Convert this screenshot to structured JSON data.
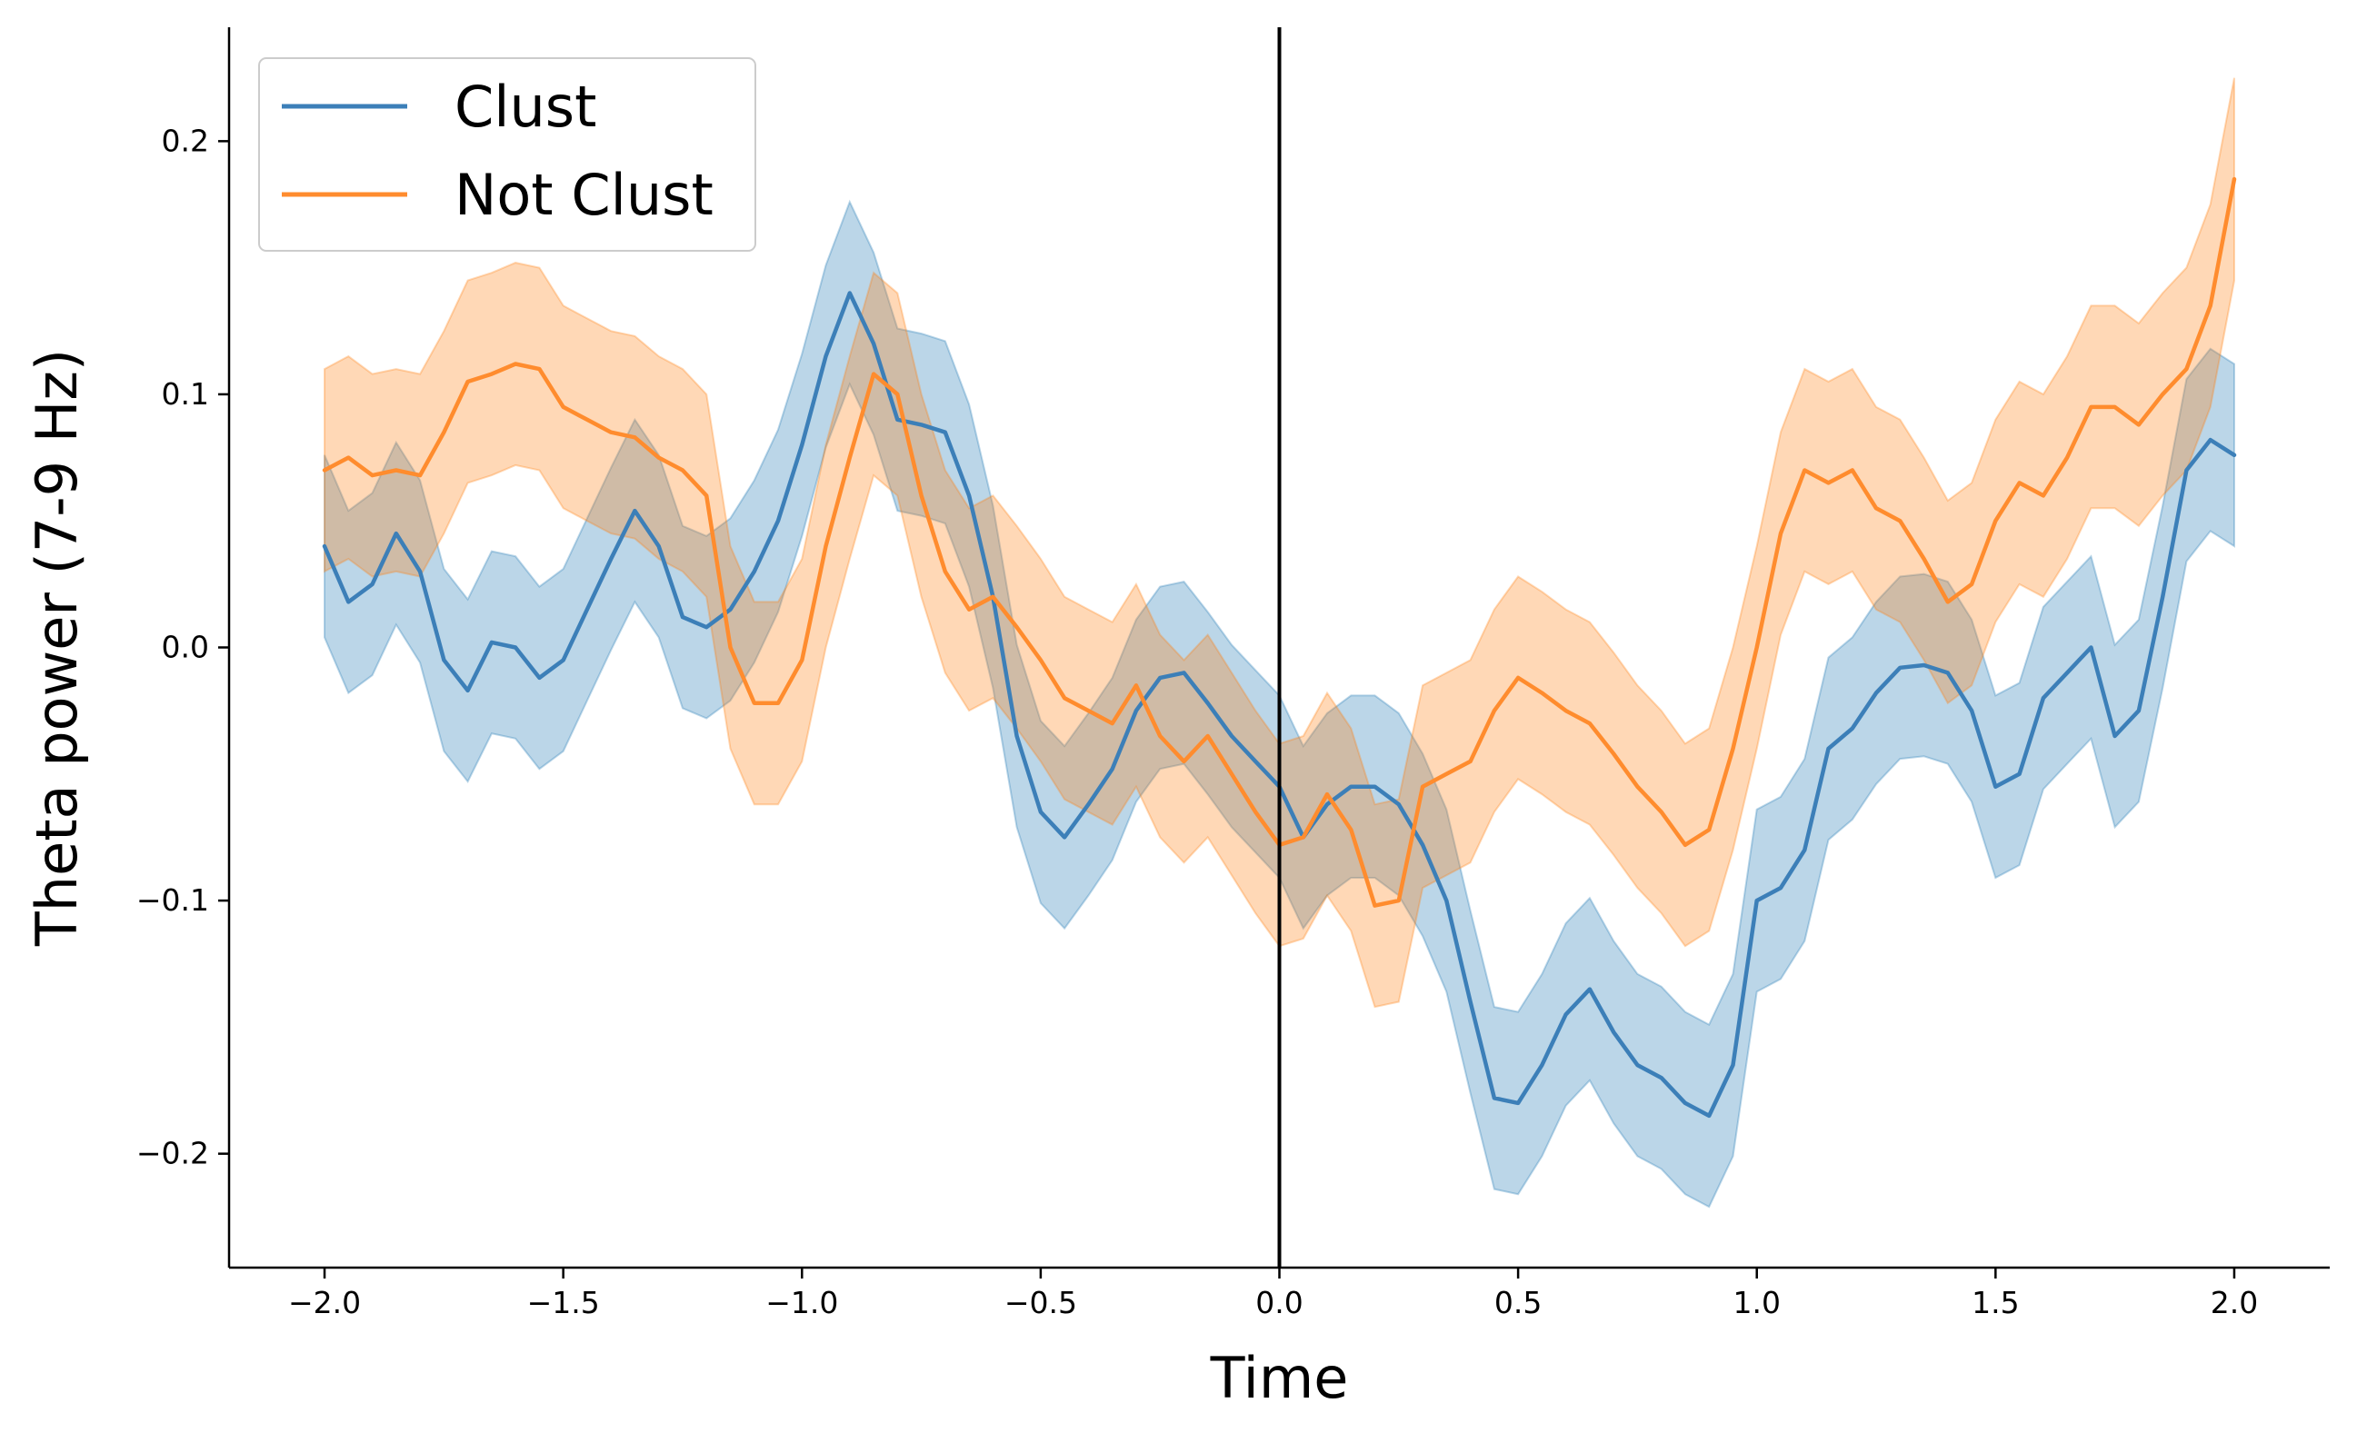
{
  "chart_data": {
    "type": "line",
    "title": "",
    "xlabel": "Time",
    "ylabel": "Theta power (7-9 Hz)",
    "xlim": [
      -2.2,
      2.2
    ],
    "ylim": [
      -0.245,
      0.245
    ],
    "xticks": [
      -2.0,
      -1.5,
      -1.0,
      -0.5,
      0.0,
      0.5,
      1.0,
      1.5,
      2.0
    ],
    "xtick_labels": [
      "−2.0",
      "−1.5",
      "−1.0",
      "−0.5",
      "0.0",
      "0.5",
      "1.0",
      "1.5",
      "2.0"
    ],
    "yticks": [
      -0.2,
      -0.1,
      0.0,
      0.1,
      0.2
    ],
    "ytick_labels": [
      "−0.2",
      "−0.1",
      "0.0",
      "0.1",
      "0.2"
    ],
    "grid": false,
    "legend_position": "top-left",
    "vertical_line_x": 0.0,
    "series": [
      {
        "name": "Clust",
        "color": "#3c7fb8",
        "band_color": "#1f77b4",
        "x": [
          -2.0,
          -1.95,
          -1.9,
          -1.85,
          -1.8,
          -1.75,
          -1.7,
          -1.65,
          -1.6,
          -1.55,
          -1.5,
          -1.45,
          -1.4,
          -1.35,
          -1.3,
          -1.25,
          -1.2,
          -1.15,
          -1.1,
          -1.05,
          -1.0,
          -0.95,
          -0.9,
          -0.85,
          -0.8,
          -0.75,
          -0.7,
          -0.65,
          -0.6,
          -0.55,
          -0.5,
          -0.45,
          -0.4,
          -0.35,
          -0.3,
          -0.25,
          -0.2,
          -0.15,
          -0.1,
          -0.05,
          0.0,
          0.05,
          0.1,
          0.15,
          0.2,
          0.25,
          0.3,
          0.35,
          0.4,
          0.45,
          0.5,
          0.55,
          0.6,
          0.65,
          0.7,
          0.75,
          0.8,
          0.85,
          0.9,
          0.95,
          1.0,
          1.05,
          1.1,
          1.15,
          1.2,
          1.25,
          1.3,
          1.35,
          1.4,
          1.45,
          1.5,
          1.55,
          1.6,
          1.65,
          1.7,
          1.75,
          1.8,
          1.85,
          1.9,
          1.95,
          2.0
        ],
        "y": [
          0.04,
          0.018,
          0.025,
          0.045,
          0.03,
          -0.005,
          -0.017,
          0.002,
          0.0,
          -0.012,
          -0.005,
          0.015,
          0.035,
          0.054,
          0.04,
          0.012,
          0.008,
          0.015,
          0.03,
          0.05,
          0.08,
          0.115,
          0.14,
          0.12,
          0.09,
          0.088,
          0.085,
          0.06,
          0.02,
          -0.035,
          -0.065,
          -0.075,
          -0.062,
          -0.048,
          -0.025,
          -0.012,
          -0.01,
          -0.022,
          -0.035,
          -0.045,
          -0.055,
          -0.075,
          -0.062,
          -0.055,
          -0.055,
          -0.062,
          -0.078,
          -0.1,
          -0.14,
          -0.178,
          -0.18,
          -0.165,
          -0.145,
          -0.135,
          -0.152,
          -0.165,
          -0.17,
          -0.18,
          -0.185,
          -0.165,
          -0.1,
          -0.095,
          -0.08,
          -0.04,
          -0.032,
          -0.018,
          -0.008,
          -0.007,
          -0.01,
          -0.025,
          -0.055,
          -0.05,
          -0.02,
          -0.01,
          0.0,
          -0.035,
          -0.025,
          0.02,
          0.07,
          0.082,
          0.076
        ],
        "lower": [
          0.004,
          -0.018,
          -0.011,
          0.009,
          -0.006,
          -0.041,
          -0.053,
          -0.034,
          -0.036,
          -0.048,
          -0.041,
          -0.021,
          -0.001,
          0.018,
          0.004,
          -0.024,
          -0.028,
          -0.021,
          -0.006,
          0.014,
          0.044,
          0.079,
          0.104,
          0.084,
          0.054,
          0.052,
          0.049,
          0.024,
          -0.016,
          -0.071,
          -0.101,
          -0.111,
          -0.098,
          -0.084,
          -0.061,
          -0.048,
          -0.046,
          -0.058,
          -0.071,
          -0.081,
          -0.091,
          -0.111,
          -0.098,
          -0.091,
          -0.091,
          -0.098,
          -0.114,
          -0.136,
          -0.176,
          -0.214,
          -0.216,
          -0.201,
          -0.181,
          -0.171,
          -0.188,
          -0.201,
          -0.206,
          -0.216,
          -0.221,
          -0.201,
          -0.136,
          -0.131,
          -0.116,
          -0.076,
          -0.068,
          -0.054,
          -0.044,
          -0.043,
          -0.046,
          -0.061,
          -0.091,
          -0.086,
          -0.056,
          -0.046,
          -0.036,
          -0.071,
          -0.061,
          -0.016,
          0.034,
          0.046,
          0.04
        ],
        "upper": [
          0.076,
          0.054,
          0.061,
          0.081,
          0.066,
          0.031,
          0.019,
          0.038,
          0.036,
          0.024,
          0.031,
          0.051,
          0.071,
          0.09,
          0.076,
          0.048,
          0.044,
          0.051,
          0.066,
          0.086,
          0.116,
          0.151,
          0.176,
          0.156,
          0.126,
          0.124,
          0.121,
          0.096,
          0.056,
          0.001,
          -0.029,
          -0.039,
          -0.026,
          -0.012,
          0.011,
          0.024,
          0.026,
          0.014,
          0.001,
          -0.009,
          -0.019,
          -0.039,
          -0.026,
          -0.019,
          -0.019,
          -0.026,
          -0.042,
          -0.064,
          -0.104,
          -0.142,
          -0.144,
          -0.129,
          -0.109,
          -0.099,
          -0.116,
          -0.129,
          -0.134,
          -0.144,
          -0.149,
          -0.129,
          -0.064,
          -0.059,
          -0.044,
          -0.004,
          0.004,
          0.018,
          0.028,
          0.029,
          0.026,
          0.011,
          -0.019,
          -0.014,
          0.016,
          0.026,
          0.036,
          0.001,
          0.011,
          0.056,
          0.106,
          0.118,
          0.112
        ]
      },
      {
        "name": "Not Clust",
        "color": "#ff8c2e",
        "band_color": "#ff7f0e",
        "x": [
          -2.0,
          -1.95,
          -1.9,
          -1.85,
          -1.8,
          -1.75,
          -1.7,
          -1.65,
          -1.6,
          -1.55,
          -1.5,
          -1.45,
          -1.4,
          -1.35,
          -1.3,
          -1.25,
          -1.2,
          -1.15,
          -1.1,
          -1.05,
          -1.0,
          -0.95,
          -0.9,
          -0.85,
          -0.8,
          -0.75,
          -0.7,
          -0.65,
          -0.6,
          -0.55,
          -0.5,
          -0.45,
          -0.4,
          -0.35,
          -0.3,
          -0.25,
          -0.2,
          -0.15,
          -0.1,
          -0.05,
          0.0,
          0.05,
          0.1,
          0.15,
          0.2,
          0.25,
          0.3,
          0.35,
          0.4,
          0.45,
          0.5,
          0.55,
          0.6,
          0.65,
          0.7,
          0.75,
          0.8,
          0.85,
          0.9,
          0.95,
          1.0,
          1.05,
          1.1,
          1.15,
          1.2,
          1.25,
          1.3,
          1.35,
          1.4,
          1.45,
          1.5,
          1.55,
          1.6,
          1.65,
          1.7,
          1.75,
          1.8,
          1.85,
          1.9,
          1.95,
          2.0
        ],
        "y": [
          0.07,
          0.075,
          0.068,
          0.07,
          0.068,
          0.085,
          0.105,
          0.108,
          0.112,
          0.11,
          0.095,
          0.09,
          0.085,
          0.083,
          0.075,
          0.07,
          0.06,
          0.0,
          -0.022,
          -0.022,
          -0.005,
          0.04,
          0.075,
          0.108,
          0.1,
          0.06,
          0.03,
          0.015,
          0.02,
          0.008,
          -0.005,
          -0.02,
          -0.025,
          -0.03,
          -0.015,
          -0.035,
          -0.045,
          -0.035,
          -0.05,
          -0.065,
          -0.078,
          -0.075,
          -0.058,
          -0.072,
          -0.102,
          -0.1,
          -0.055,
          -0.05,
          -0.045,
          -0.025,
          -0.012,
          -0.018,
          -0.025,
          -0.03,
          -0.042,
          -0.055,
          -0.065,
          -0.078,
          -0.072,
          -0.04,
          0.0,
          0.045,
          0.07,
          0.065,
          0.07,
          0.055,
          0.05,
          0.035,
          0.018,
          0.025,
          0.05,
          0.065,
          0.06,
          0.075,
          0.095,
          0.095,
          0.088,
          0.1,
          0.11,
          0.135,
          0.185
        ],
        "lower": [
          0.03,
          0.035,
          0.028,
          0.03,
          0.028,
          0.045,
          0.065,
          0.068,
          0.072,
          0.07,
          0.055,
          0.05,
          0.045,
          0.043,
          0.035,
          0.03,
          0.02,
          -0.04,
          -0.062,
          -0.062,
          -0.045,
          0.0,
          0.035,
          0.068,
          0.06,
          0.02,
          -0.01,
          -0.025,
          -0.02,
          -0.032,
          -0.045,
          -0.06,
          -0.065,
          -0.07,
          -0.055,
          -0.075,
          -0.085,
          -0.075,
          -0.09,
          -0.105,
          -0.118,
          -0.115,
          -0.098,
          -0.112,
          -0.142,
          -0.14,
          -0.095,
          -0.09,
          -0.085,
          -0.065,
          -0.052,
          -0.058,
          -0.065,
          -0.07,
          -0.082,
          -0.095,
          -0.105,
          -0.118,
          -0.112,
          -0.08,
          -0.04,
          0.005,
          0.03,
          0.025,
          0.03,
          0.015,
          0.01,
          -0.005,
          -0.022,
          -0.015,
          0.01,
          0.025,
          0.02,
          0.035,
          0.055,
          0.055,
          0.048,
          0.06,
          0.07,
          0.095,
          0.145
        ],
        "upper": [
          0.11,
          0.115,
          0.108,
          0.11,
          0.108,
          0.125,
          0.145,
          0.148,
          0.152,
          0.15,
          0.135,
          0.13,
          0.125,
          0.123,
          0.115,
          0.11,
          0.1,
          0.04,
          0.018,
          0.018,
          0.035,
          0.08,
          0.115,
          0.148,
          0.14,
          0.1,
          0.07,
          0.055,
          0.06,
          0.048,
          0.035,
          0.02,
          0.015,
          0.01,
          0.025,
          0.005,
          -0.005,
          0.005,
          -0.01,
          -0.025,
          -0.038,
          -0.035,
          -0.018,
          -0.032,
          -0.062,
          -0.06,
          -0.015,
          -0.01,
          -0.005,
          0.015,
          0.028,
          0.022,
          0.015,
          0.01,
          -0.002,
          -0.015,
          -0.025,
          -0.038,
          -0.032,
          0.0,
          0.04,
          0.085,
          0.11,
          0.105,
          0.11,
          0.095,
          0.09,
          0.075,
          0.058,
          0.065,
          0.09,
          0.105,
          0.1,
          0.115,
          0.135,
          0.135,
          0.128,
          0.14,
          0.15,
          0.175,
          0.225
        ]
      }
    ]
  }
}
